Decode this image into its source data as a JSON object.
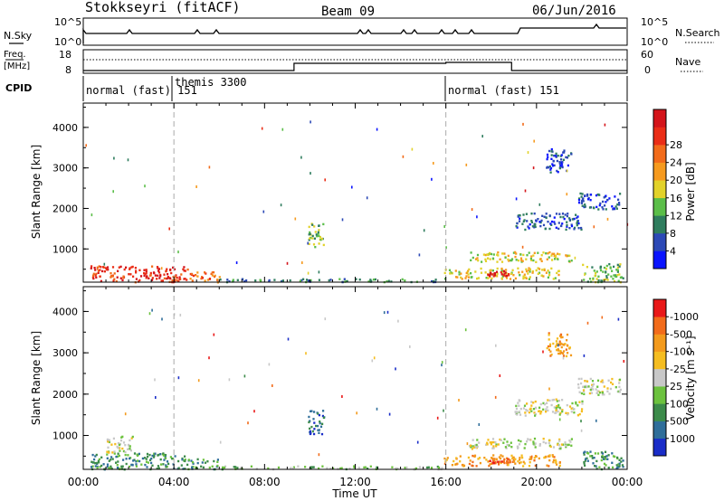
{
  "header": {
    "station": "Stokkseyri (fitACF)",
    "beam": "Beam 09",
    "date": "06/Jun/2016"
  },
  "top_panels": {
    "nsky": {
      "label": "N.Sky",
      "ticks": [
        "10^5",
        "10^0"
      ]
    },
    "nsearch": {
      "label": "N.Search",
      "ticks": [
        "10^5",
        "10^0"
      ]
    },
    "freq": {
      "label_top": "Freq.",
      "label_unit": "[MHz]",
      "ticks": [
        "18",
        "8"
      ]
    },
    "nave": {
      "label": "Nave",
      "ticks": [
        "60",
        "0"
      ]
    },
    "cpid": {
      "label": "CPID",
      "modes": [
        {
          "text": "normal (fast) 151",
          "start_h": 0
        },
        {
          "text": "themis 3300",
          "start_h": 3.8
        },
        {
          "text": "normal (fast) 151",
          "start_h": 16
        }
      ]
    }
  },
  "chart_data": [
    {
      "type": "heatmap",
      "panel": "power",
      "ylabel": "Slant Range [km]",
      "y_ticks": [
        1000,
        2000,
        3000,
        4000
      ],
      "ylim": [
        180,
        4600
      ],
      "x_ticks": [
        "00:00",
        "04:00",
        "08:00",
        "12:00",
        "16:00",
        "20:00",
        "00:00"
      ],
      "xlim": [
        0,
        24
      ],
      "colorbar": {
        "label": "Power [dB]",
        "ticks": [
          "4",
          "8",
          "12",
          "16",
          "20",
          "24",
          "28"
        ],
        "colors": [
          "#0a14ff",
          "#2c49b6",
          "#2f7d5e",
          "#5bbe49",
          "#e2d22a",
          "#f69a1e",
          "#f26b1a",
          "#ea2d16",
          "#d4141a"
        ]
      },
      "regions": [
        {
          "t": [
            0.3,
            4.6
          ],
          "r": [
            200,
            600
          ],
          "level": 7
        },
        {
          "t": [
            4.6,
            6.0
          ],
          "r": [
            200,
            450
          ],
          "level": 6
        },
        {
          "t": [
            6.0,
            15.8
          ],
          "r": [
            200,
            280
          ],
          "level": 2
        },
        {
          "t": [
            9.9,
            10.6
          ],
          "r": [
            1050,
            1650
          ],
          "level": 3
        },
        {
          "t": [
            15.9,
            21.0
          ],
          "r": [
            280,
            550
          ],
          "level": 4
        },
        {
          "t": [
            17.8,
            18.8
          ],
          "r": [
            350,
            480
          ],
          "level": 8
        },
        {
          "t": [
            17.0,
            21.6
          ],
          "r": [
            700,
            950
          ],
          "level": 4
        },
        {
          "t": [
            19.0,
            22.0
          ],
          "r": [
            1500,
            1900
          ],
          "level": 1
        },
        {
          "t": [
            21.8,
            23.7
          ],
          "r": [
            2000,
            2400
          ],
          "level": 1
        },
        {
          "t": [
            20.4,
            21.5
          ],
          "r": [
            2900,
            3500
          ],
          "level": 1
        },
        {
          "t": [
            22.0,
            23.8
          ],
          "r": [
            200,
            650
          ],
          "level": 3
        }
      ]
    },
    {
      "type": "heatmap",
      "panel": "velocity",
      "ylabel": "Slant Range [km]",
      "y_ticks": [
        1000,
        2000,
        3000,
        4000
      ],
      "ylim": [
        180,
        4600
      ],
      "x_ticks": [
        "00:00",
        "04:00",
        "08:00",
        "12:00",
        "16:00",
        "20:00",
        "00:00"
      ],
      "xlim": [
        0,
        24
      ],
      "xlabel": "Time UT",
      "colorbar": {
        "label": "Velocity [m s⁻¹]",
        "ticks": [
          "1000",
          "500",
          "100",
          "25",
          "-25",
          "-100",
          "-500",
          "-1000"
        ],
        "colors": [
          "#1a2dc8",
          "#2f6e9a",
          "#3c8b4a",
          "#6cc23e",
          "#c8c8c8",
          "#f5bd20",
          "#f39a1c",
          "#f26b1a",
          "#e91818"
        ]
      },
      "regions": [
        {
          "t": [
            0.3,
            4.6
          ],
          "r": [
            200,
            600
          ],
          "level": 2
        },
        {
          "t": [
            1.0,
            2.2
          ],
          "r": [
            600,
            1000
          ],
          "level": 4
        },
        {
          "t": [
            4.6,
            6.0
          ],
          "r": [
            200,
            450
          ],
          "level": 2
        },
        {
          "t": [
            6.0,
            15.8
          ],
          "r": [
            200,
            280
          ],
          "level": 3
        },
        {
          "t": [
            9.9,
            10.6
          ],
          "r": [
            1050,
            1650
          ],
          "level": 1
        },
        {
          "t": [
            15.9,
            21.0
          ],
          "r": [
            280,
            550
          ],
          "level": 6
        },
        {
          "t": [
            17.8,
            18.8
          ],
          "r": [
            350,
            480
          ],
          "level": 7
        },
        {
          "t": [
            17.0,
            21.6
          ],
          "r": [
            700,
            950
          ],
          "level": 4
        },
        {
          "t": [
            19.0,
            22.0
          ],
          "r": [
            1500,
            1900
          ],
          "level": 4
        },
        {
          "t": [
            21.8,
            23.7
          ],
          "r": [
            2000,
            2400
          ],
          "level": 4
        },
        {
          "t": [
            20.4,
            21.5
          ],
          "r": [
            2900,
            3500
          ],
          "level": 6
        },
        {
          "t": [
            22.0,
            23.8
          ],
          "r": [
            200,
            650
          ],
          "level": 2
        }
      ]
    }
  ]
}
